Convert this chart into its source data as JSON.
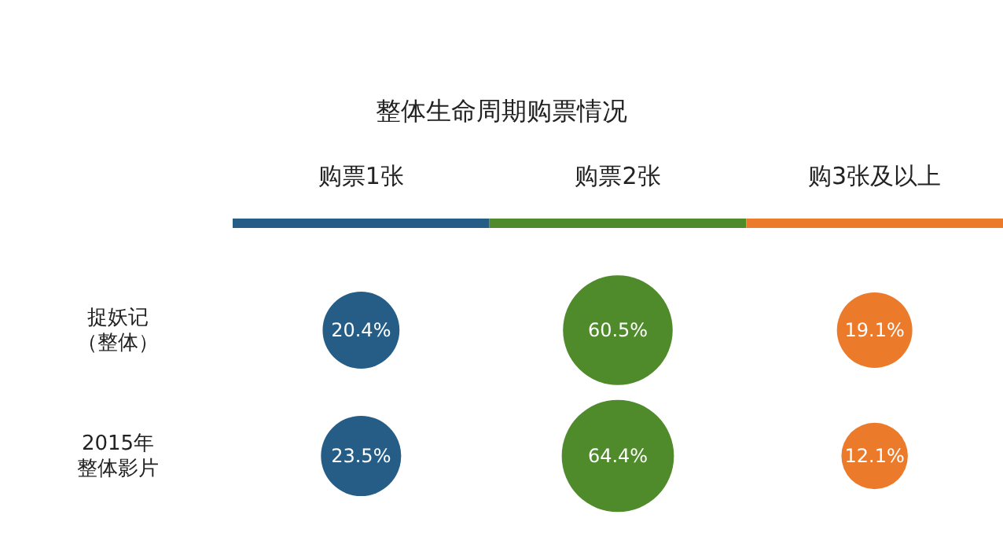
{
  "chart_data": {
    "type": "other",
    "title": "整体生命周期购票情况",
    "categories": [
      "购票1张",
      "购票2张",
      "购3张及以上"
    ],
    "y_categories": [
      "捉妖记（整体）",
      "2015年整体影片"
    ],
    "colors": [
      "#255d87",
      "#4f8a2b",
      "#ec7a2b"
    ],
    "series": [
      {
        "colors": [
          "#255d87",
          "#4f8a2b",
          "#ec7a2b"
        ],
        "values": [
          20.4,
          60.5,
          19.1
        ],
        "value_labels": [
          "20.4%",
          "60.5%",
          "19.1%"
        ]
      },
      {
        "colors": [
          "#255d87",
          "#4f8a2b",
          "#ec7a2b"
        ],
        "values": [
          23.5,
          64.4,
          12.1
        ],
        "value_labels": [
          "23.5%",
          "64.4%",
          "12.1%"
        ]
      }
    ]
  }
}
